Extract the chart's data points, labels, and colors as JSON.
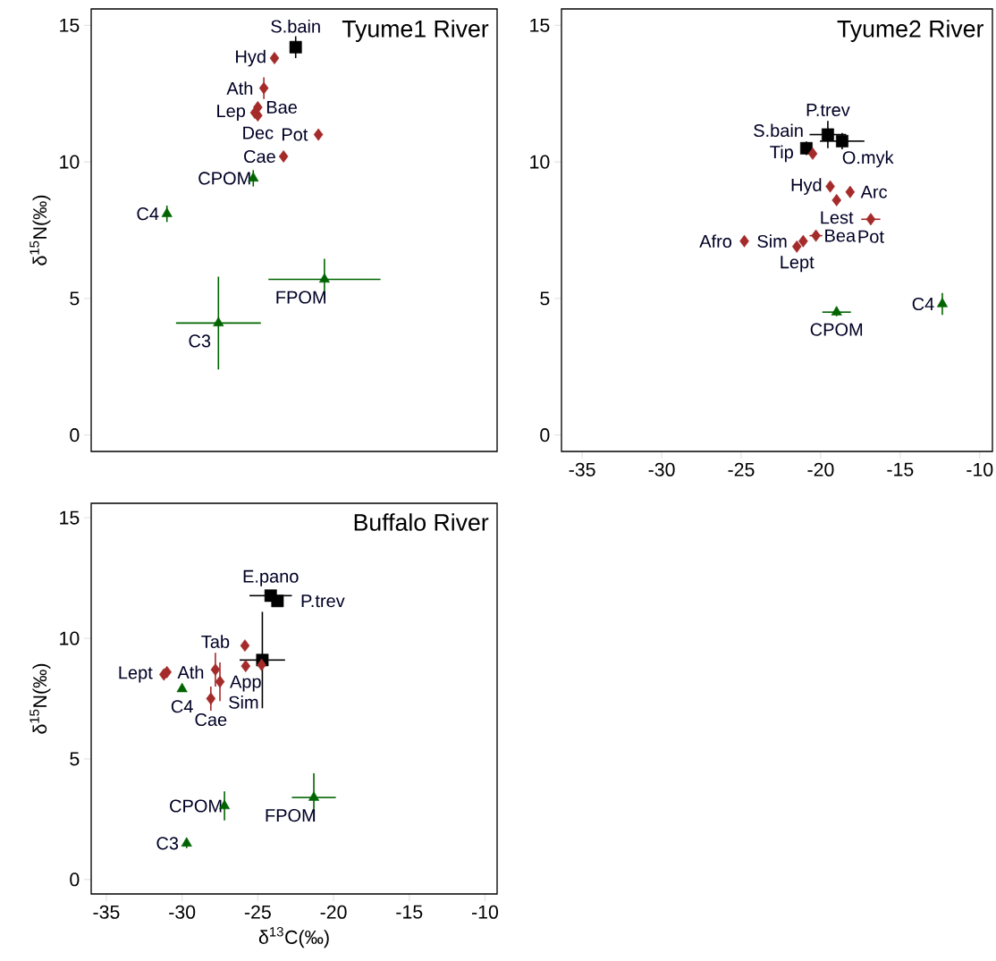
{
  "chart_data": [
    {
      "type": "scatter",
      "title": "Tyume1 River",
      "ylabel": "δ$^{15}$N(‰)",
      "xlim": [
        -36,
        -9.2
      ],
      "ylim": [
        -0.6,
        15.6
      ],
      "yticks": [
        0,
        5,
        10,
        15
      ],
      "tick_labels": "y",
      "series": [
        {
          "color": "#006400",
          "marker": "triangle",
          "x": [
            -25.3,
            -31.0,
            -20.6,
            -27.6
          ],
          "values": [
            9.4,
            8.1,
            5.7,
            4.1
          ],
          "errors": [
            0.3,
            0.3,
            0.75,
            1.7
          ],
          "xerrors": [
            null,
            null,
            3.7,
            2.8
          ],
          "value_labels": [
            "CPOM",
            "C4",
            "FPOM",
            "C3"
          ]
        },
        {
          "color": "#a52a2a",
          "marker": "diamond",
          "x": [
            -23.9,
            -24.6,
            -25.0,
            -25.0,
            -25.2,
            -21.0,
            -23.3
          ],
          "values": [
            13.8,
            12.7,
            12.0,
            11.7,
            11.8,
            11.0,
            10.2
          ],
          "errors": [
            null,
            0.4,
            null,
            null,
            null,
            null,
            null
          ],
          "value_labels": [
            "Hyd",
            "Ath",
            "Bae",
            "Dec",
            "Lep",
            "Pot",
            "Cae"
          ]
        },
        {
          "color": "#000000",
          "marker": "square",
          "x": [
            -22.5
          ],
          "values": [
            14.2
          ],
          "errors": [
            0.4
          ],
          "value_labels": [
            "S.bain"
          ]
        }
      ]
    },
    {
      "type": "scatter",
      "title": "Tyume2 River",
      "xlim": [
        -36.3,
        -9.2
      ],
      "ylim": [
        -0.6,
        15.6
      ],
      "xticks": [
        -35,
        -30,
        -25,
        -20,
        -15,
        -10
      ],
      "yticks": [
        0,
        5,
        10,
        15
      ],
      "series": [
        {
          "color": "#006400",
          "marker": "triangle",
          "x": [
            -19.0,
            -12.35
          ],
          "values": [
            4.5,
            4.8
          ],
          "errors": [
            0.15,
            0.4
          ],
          "xerrors": [
            0.9,
            null
          ],
          "value_labels": [
            "CPOM",
            "C4"
          ]
        },
        {
          "color": "#a52a2a",
          "marker": "diamond",
          "x": [
            -20.5,
            -19.4,
            -18.15,
            -19.0,
            -16.85,
            -20.3,
            -21.1,
            -21.5,
            -24.8
          ],
          "values": [
            10.3,
            9.1,
            8.9,
            8.6,
            7.9,
            7.3,
            7.1,
            6.9,
            7.1
          ],
          "xerrors": [
            null,
            null,
            null,
            null,
            0.6,
            0.4,
            null,
            null,
            null
          ],
          "value_labels": [
            "Tip",
            "Hyd",
            "Arc",
            "Lest",
            "Pot",
            "Bea",
            "Sim",
            "Lept",
            "Afro"
          ]
        },
        {
          "color": "#000000",
          "marker": "square",
          "x": [
            -20.9,
            -19.55,
            -18.65
          ],
          "values": [
            10.5,
            11.0,
            10.76
          ],
          "errors": [
            0.25,
            0.5,
            0.3
          ],
          "xerrors": [
            null,
            1.15,
            1.4
          ],
          "value_labels": [
            "S.bain",
            "P.trev",
            "O.myk"
          ]
        }
      ]
    },
    {
      "type": "scatter",
      "title": "Buffalo River",
      "xlabel": "δ$^{13}$C(‰)",
      "ylabel": "δ$^{15}$N(‰)",
      "xlim": [
        -36,
        -9.2
      ],
      "ylim": [
        -0.6,
        15.6
      ],
      "xticks": [
        -35,
        -30,
        -25,
        -20,
        -15,
        -10
      ],
      "yticks": [
        0,
        5,
        10,
        15
      ],
      "series": [
        {
          "color": "#006400",
          "marker": "triangle",
          "x": [
            -30.0,
            -27.2,
            -21.3,
            -29.7
          ],
          "values": [
            7.9,
            3.05,
            3.4,
            1.5
          ],
          "errors": [
            null,
            0.6,
            1.0,
            0.2
          ],
          "xerrors": [
            null,
            null,
            1.45,
            null
          ],
          "value_labels": [
            "C4",
            "CPOM",
            "FPOM",
            "C3"
          ]
        },
        {
          "color": "#a52a2a",
          "marker": "diamond",
          "x": [
            -25.85,
            -24.75,
            -25.8,
            -31.2,
            -31.0,
            -28.1,
            -27.5,
            -27.8
          ],
          "values": [
            9.7,
            8.9,
            8.85,
            8.5,
            8.6,
            7.5,
            8.2,
            8.7
          ],
          "errors": [
            null,
            null,
            null,
            null,
            null,
            0.5,
            0.8,
            0.7
          ],
          "value_labels": [
            null,
            null,
            "App",
            "Lept",
            "Ath",
            "Cae",
            "Sim",
            "Tab"
          ]
        },
        {
          "color": "#000000",
          "marker": "square",
          "x": [
            -24.15,
            -23.7,
            -24.7
          ],
          "values": [
            11.77,
            11.55,
            9.1
          ],
          "errors": [
            0.2,
            null,
            2.0
          ],
          "xerrors": [
            1.4,
            null,
            1.5
          ],
          "value_labels": [
            "E.pano",
            "P.trev",
            null
          ]
        }
      ]
    }
  ]
}
